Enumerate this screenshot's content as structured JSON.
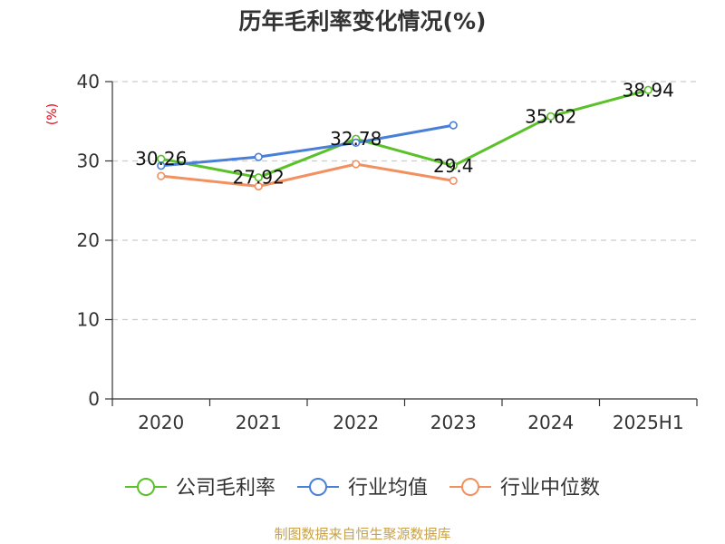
{
  "title": "历年毛利率变化情况(%)",
  "y_unit": "(%)",
  "source": "制图数据来自恒生聚源数据库",
  "chart_data": {
    "type": "line",
    "title": "历年毛利率变化情况(%)",
    "ylabel": "(%)",
    "xlabel": "",
    "ylim": [
      0,
      40
    ],
    "yticks": [
      0,
      10,
      20,
      30,
      40
    ],
    "grid": true,
    "legend_position": "bottom",
    "categories": [
      "2020",
      "2021",
      "2022",
      "2023",
      "2024",
      "2025H1"
    ],
    "series": [
      {
        "name": "公司毛利率",
        "color": "#5ac129",
        "values": [
          30.26,
          27.92,
          32.78,
          29.4,
          35.62,
          38.94
        ],
        "labels": [
          "30.26",
          "27.92",
          "32.78",
          "29.4",
          "35.62",
          "38.94"
        ]
      },
      {
        "name": "行业均值",
        "color": "#4a7fd8",
        "values": [
          29.4,
          30.5,
          32.3,
          34.5,
          null,
          null
        ]
      },
      {
        "name": "行业中位数",
        "color": "#f39060",
        "values": [
          28.1,
          26.8,
          29.6,
          27.5,
          null,
          null
        ]
      }
    ]
  }
}
